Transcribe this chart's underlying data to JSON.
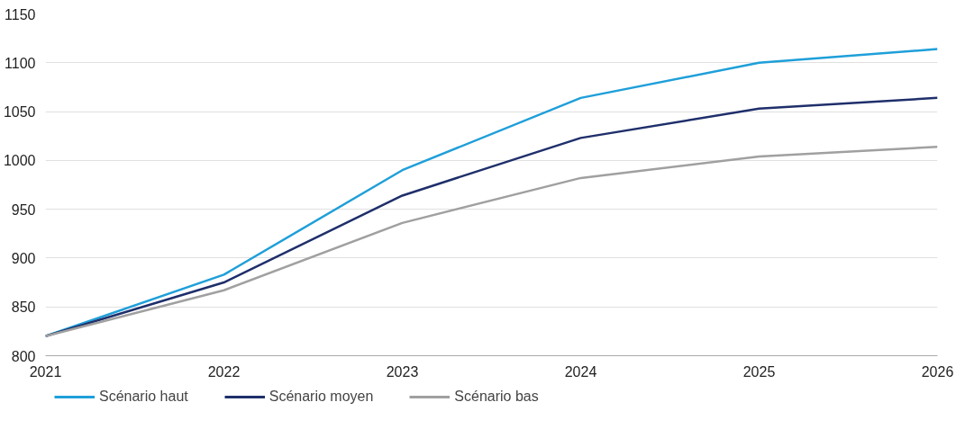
{
  "chart_data": {
    "type": "line",
    "x": [
      2021,
      2022,
      2023,
      2024,
      2025,
      2026
    ],
    "series": [
      {
        "name": "Scénario haut",
        "color": "#1f9fd9",
        "values": [
          820,
          883,
          990,
          1064,
          1100,
          1114
        ]
      },
      {
        "name": "Scénario moyen",
        "color": "#1f2f6b",
        "values": [
          820,
          875,
          964,
          1023,
          1053,
          1064
        ]
      },
      {
        "name": "Scénario bas",
        "color": "#a0a0a0",
        "values": [
          820,
          867,
          936,
          982,
          1004,
          1014
        ]
      }
    ],
    "xlim": [
      2021,
      2026
    ],
    "xticks": [
      2021,
      2022,
      2023,
      2024,
      2025,
      2026
    ],
    "ylim": [
      800,
      1150
    ],
    "yticks": [
      800,
      850,
      900,
      950,
      1000,
      1050,
      1100,
      1150
    ],
    "grid": "y",
    "legend": "bottom",
    "marker": "none",
    "line_style": "solid"
  }
}
